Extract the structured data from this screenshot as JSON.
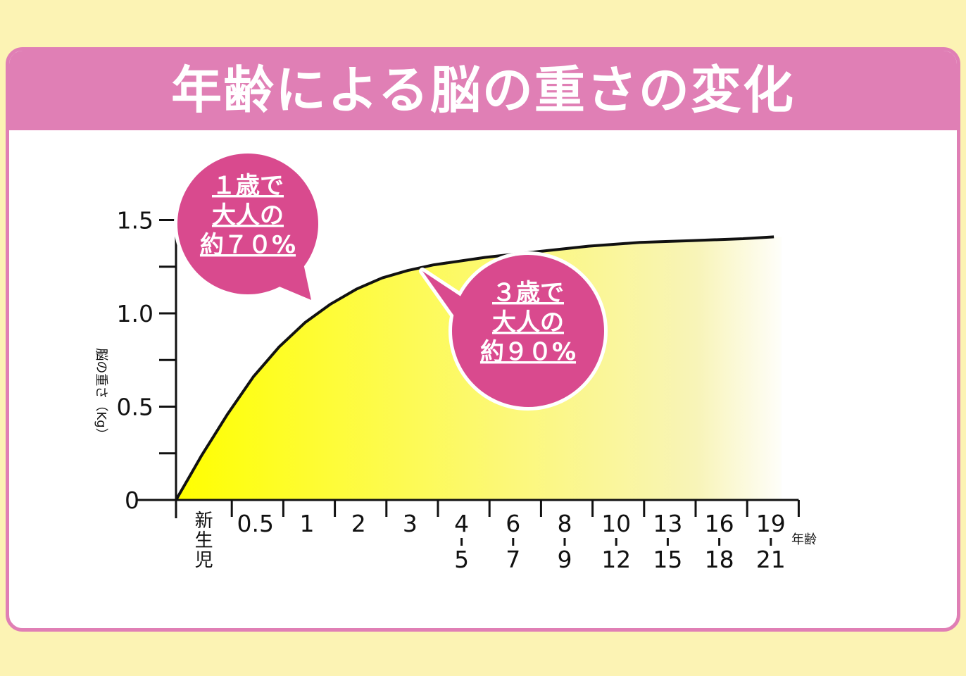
{
  "title": "年齢による脳の重さの変化",
  "colors": {
    "background": "#fcf3b4",
    "header": "#e07fb5",
    "bubble": "#d94a8e",
    "fill_start": "#ffff00",
    "curve": "#111111"
  },
  "chart_data": {
    "type": "area",
    "ylabel": "脳の重さ（Kg）",
    "xlabel": "年齢",
    "ylim": [
      0,
      1.5
    ],
    "yticks": [
      "0",
      "0.5",
      "1.0",
      "1.5"
    ],
    "categories": [
      {
        "top": "新生児"
      },
      {
        "top": "0.5"
      },
      {
        "top": "1"
      },
      {
        "top": "2"
      },
      {
        "top": "3"
      },
      {
        "top": "4",
        "bottom": "5"
      },
      {
        "top": "6",
        "bottom": "7"
      },
      {
        "top": "8",
        "bottom": "9"
      },
      {
        "top": "10",
        "bottom": "12"
      },
      {
        "top": "13",
        "bottom": "15"
      },
      {
        "top": "16",
        "bottom": "18"
      },
      {
        "top": "19",
        "bottom": "21"
      }
    ],
    "curve": [
      [
        0,
        0.0
      ],
      [
        0.25,
        0.12
      ],
      [
        0.5,
        0.24
      ],
      [
        0.75,
        0.35
      ],
      [
        1,
        0.46
      ],
      [
        1.5,
        0.66
      ],
      [
        2,
        0.82
      ],
      [
        2.5,
        0.95
      ],
      [
        3,
        1.05
      ],
      [
        3.5,
        1.13
      ],
      [
        4,
        1.19
      ],
      [
        4.5,
        1.23
      ],
      [
        5,
        1.26
      ],
      [
        6,
        1.3
      ],
      [
        7,
        1.33
      ],
      [
        8,
        1.36
      ],
      [
        9,
        1.38
      ],
      [
        10,
        1.39
      ],
      [
        11,
        1.4
      ],
      [
        11.6,
        1.41
      ]
    ],
    "annotations": [
      {
        "lines": [
          "１歳で",
          "大人の",
          "約７０%"
        ]
      },
      {
        "lines": [
          "３歳で",
          "大人の",
          "約９０%"
        ]
      }
    ]
  }
}
